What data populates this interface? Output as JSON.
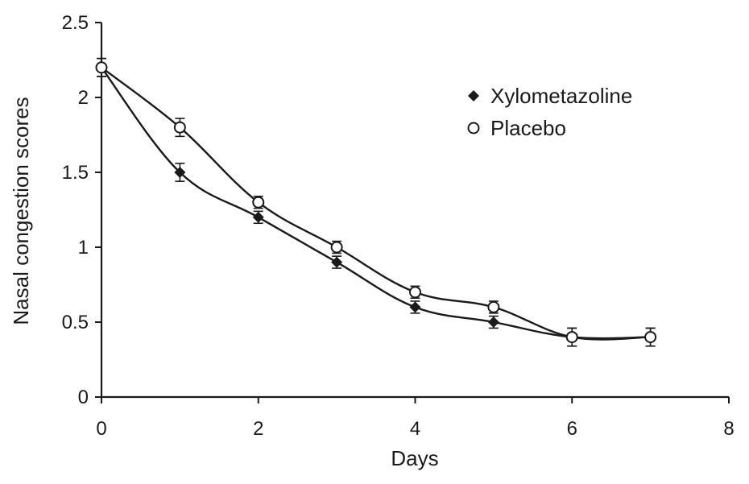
{
  "chart_data": {
    "type": "line",
    "title": "",
    "xlabel": "Days",
    "ylabel": "Nasal congestion scores",
    "xlim": [
      0,
      8
    ],
    "ylim": [
      0,
      2.5
    ],
    "x_ticks": [
      0,
      2,
      4,
      6,
      8
    ],
    "y_ticks": [
      0,
      0.5,
      1,
      1.5,
      2,
      2.5
    ],
    "x_tick_labels": [
      "0",
      "2",
      "4",
      "6",
      "8"
    ],
    "y_tick_labels": [
      "0",
      "0.5",
      "1",
      "1.5",
      "2",
      "2.5"
    ],
    "grid": false,
    "legend_position": "top-right",
    "series": [
      {
        "name": "Xylometazoline",
        "marker": "filled-diamond",
        "color": "#1a1a1a",
        "x": [
          0,
          1,
          2,
          3,
          4,
          5,
          6,
          7
        ],
        "y": [
          2.2,
          1.5,
          1.2,
          0.9,
          0.6,
          0.5,
          0.4,
          0.4
        ],
        "error": [
          0.06,
          0.06,
          0.04,
          0.04,
          0.04,
          0.04,
          0.06,
          0.06
        ]
      },
      {
        "name": "Placebo",
        "marker": "open-circle",
        "color": "#1a1a1a",
        "x": [
          0,
          1,
          2,
          3,
          4,
          5,
          6,
          7
        ],
        "y": [
          2.2,
          1.8,
          1.3,
          1.0,
          0.7,
          0.6,
          0.4,
          0.4
        ],
        "error": [
          0.06,
          0.06,
          0.04,
          0.04,
          0.04,
          0.04,
          0.06,
          0.06
        ]
      }
    ]
  }
}
